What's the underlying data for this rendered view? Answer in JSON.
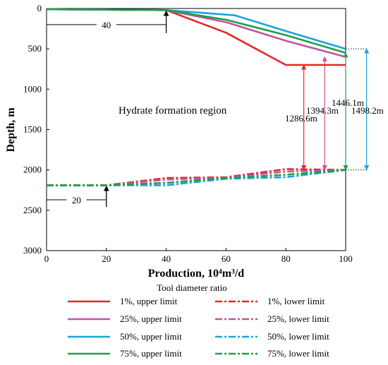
{
  "chart_data": {
    "type": "line",
    "xlabel": "Production, 10⁴m³/d",
    "ylabel": "Depth, m",
    "xlim": [
      0,
      100
    ],
    "ylim": [
      0,
      3000
    ],
    "y_inverted": true,
    "xticks": [
      "0",
      "20",
      "40",
      "60",
      "80",
      "100"
    ],
    "yticks": [
      "0",
      "500",
      "1000",
      "1500",
      "2000",
      "2500",
      "3000"
    ],
    "region_label": "Hydrate formation region",
    "legend_title": "Tool diameter ratio",
    "colors": {
      "1%": "#e8262a",
      "25%": "#c353a3",
      "50%": "#1aa3dc",
      "75%": "#1e9f4a"
    },
    "series": [
      {
        "name": "1%, upper limit",
        "ratio": "1%",
        "limit": "upper",
        "x": [
          0,
          40,
          60,
          80,
          100
        ],
        "y": [
          10,
          20,
          300,
          700,
          700
        ]
      },
      {
        "name": "25%, upper limit",
        "ratio": "25%",
        "limit": "upper",
        "x": [
          0,
          40,
          60,
          80,
          100
        ],
        "y": [
          10,
          20,
          170,
          400,
          600
        ]
      },
      {
        "name": "50%, upper limit",
        "ratio": "50%",
        "limit": "upper",
        "x": [
          0,
          40,
          63,
          80,
          100
        ],
        "y": [
          10,
          20,
          85,
          280,
          500
        ]
      },
      {
        "name": "75%, upper limit",
        "ratio": "75%",
        "limit": "upper",
        "x": [
          0,
          40,
          60,
          80,
          100
        ],
        "y": [
          10,
          20,
          140,
          330,
          550
        ]
      },
      {
        "name": "1%, lower limit",
        "ratio": "1%",
        "limit": "lower",
        "x": [
          0,
          20,
          40,
          60,
          80,
          100
        ],
        "y": [
          2190,
          2190,
          2100,
          2090,
          1990,
          2000
        ]
      },
      {
        "name": "25%, lower limit",
        "ratio": "25%",
        "limit": "lower",
        "x": [
          0,
          20,
          40,
          60,
          80,
          100
        ],
        "y": [
          2190,
          2190,
          2120,
          2095,
          2020,
          2000
        ]
      },
      {
        "name": "50%, lower limit",
        "ratio": "50%",
        "limit": "lower",
        "x": [
          0,
          20,
          40,
          60,
          80,
          100
        ],
        "y": [
          2190,
          2190,
          2190,
          2110,
          2090,
          2000
        ]
      },
      {
        "name": "75%, lower limit",
        "ratio": "75%",
        "limit": "lower",
        "x": [
          0,
          20,
          40,
          60,
          80,
          100
        ],
        "y": [
          2190,
          2190,
          2160,
          2100,
          2060,
          2000
        ]
      }
    ],
    "annotations": [
      {
        "text": "40",
        "x": 40,
        "y": 200,
        "kind": "marker-upper"
      },
      {
        "text": "20",
        "x": 20,
        "y": 2370,
        "kind": "marker-lower"
      },
      {
        "text": "1286.6m",
        "ratio": "1%",
        "x": 86,
        "from": 2000,
        "to": 700
      },
      {
        "text": "1394.3m",
        "ratio": "25%",
        "x": 93,
        "from": 2000,
        "to": 600
      },
      {
        "text": "1446.1m",
        "ratio": "75%",
        "x": 100,
        "from": 2000,
        "to": 550
      },
      {
        "text": "1498.2m",
        "ratio": "50%",
        "x": 107,
        "from": 2000,
        "to": 500
      }
    ]
  }
}
